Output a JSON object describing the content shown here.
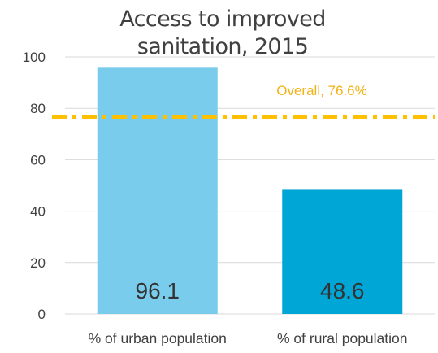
{
  "chart_data": {
    "type": "bar",
    "title_lines": [
      "Access to improved",
      "sanitation, 2015"
    ],
    "categories": [
      "% of urban population",
      "% of rural population"
    ],
    "values": [
      96.1,
      48.6
    ],
    "data_labels": [
      "96.1",
      "48.6"
    ],
    "ylim": [
      0,
      100
    ],
    "yticks": [
      0,
      20,
      40,
      60,
      80,
      100
    ],
    "grid": true,
    "reference_line": {
      "label": "Overall, 76.6%",
      "value": 76.6,
      "style": "dash-dot"
    },
    "colors": {
      "bars": [
        "#79ccec",
        "#00a6d6"
      ],
      "reference": "#ffc000",
      "grid": "#d9d9d9",
      "text": "#404040"
    }
  }
}
